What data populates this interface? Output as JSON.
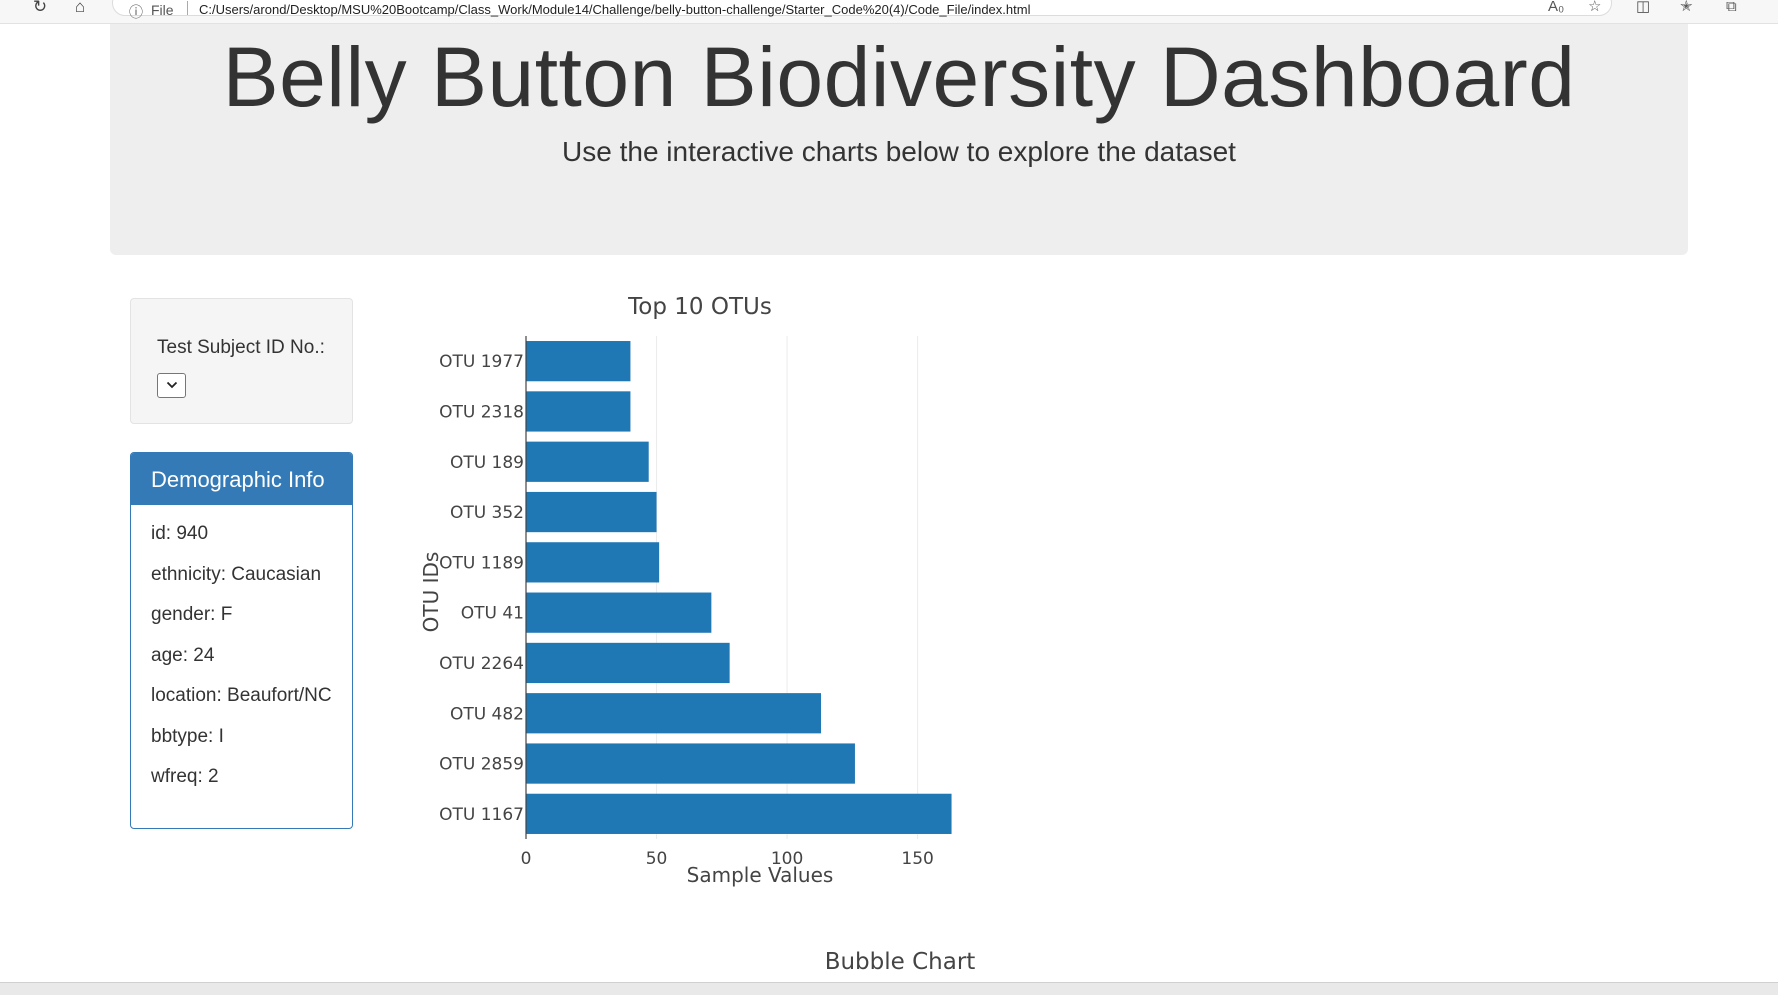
{
  "browser": {
    "reload_icon": "reload-icon",
    "home_icon": "home-icon",
    "info_icon": "info-icon",
    "file_label": "File",
    "url": "C:/Users/arond/Desktop/MSU%20Bootcamp/Class_Work/Module14/Challenge/belly-button-challenge/Starter_Code%20(4)/Code_File/index.html"
  },
  "header": {
    "title": "Belly Button Biodiversity Dashboard",
    "subtitle": "Use the interactive charts below to explore the dataset"
  },
  "selector": {
    "label": "Test Subject ID No.:",
    "value": "",
    "chevron_icon": "chevron-down-icon"
  },
  "demographics": {
    "heading": "Demographic Info",
    "rows": [
      "id: 940",
      "ethnicity: Caucasian",
      "gender: F",
      "age: 24",
      "location: Beaufort/NC",
      "bbtype: I",
      "wfreq: 2"
    ]
  },
  "bubble": {
    "title": "Bubble Chart"
  },
  "colors": {
    "bar": "#1f77b4",
    "panel": "#337ab7",
    "jumbotron": "#eeeeee"
  },
  "chart_data": {
    "type": "bar",
    "orientation": "horizontal",
    "title": "Top 10 OTUs",
    "xlabel": "Sample Values",
    "ylabel": "OTU IDs",
    "categories": [
      "OTU 1167",
      "OTU 2859",
      "OTU 482",
      "OTU 2264",
      "OTU 41",
      "OTU 1189",
      "OTU 352",
      "OTU 189",
      "OTU 2318",
      "OTU 1977"
    ],
    "values": [
      163,
      126,
      113,
      78,
      71,
      51,
      50,
      47,
      40,
      40
    ],
    "xticks": [
      0,
      50,
      100,
      150
    ],
    "xlim": [
      0,
      171.6
    ],
    "grid": true,
    "color": "#1f77b4"
  }
}
